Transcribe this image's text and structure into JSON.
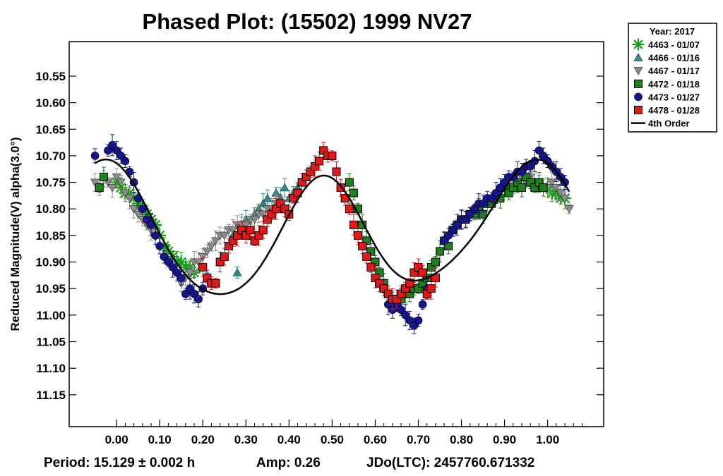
{
  "chart_data": {
    "type": "scatter",
    "title": "Phased Plot: (15502) 1999 NV27",
    "xlabel": "",
    "ylabel": "Reduced Magnitude(V) alpha(3.0°)",
    "xlim": [
      -0.11,
      1.13
    ],
    "ylim": [
      10.485,
      11.21
    ],
    "y_inverted": true,
    "x_ticks": [
      "0.00",
      "0.10",
      "0.20",
      "0.30",
      "0.40",
      "0.50",
      "0.60",
      "0.70",
      "0.80",
      "0.90",
      "1.00"
    ],
    "y_ticks": [
      "10.55",
      "10.60",
      "10.65",
      "10.70",
      "10.75",
      "10.80",
      "10.85",
      "10.90",
      "10.95",
      "11.00",
      "11.05",
      "11.10",
      "11.15"
    ],
    "legend_title": "Year: 2017",
    "legend_position": "top-right outside",
    "footer": {
      "period": "Period: 15.129 ± 0.002 h",
      "amp": "Amp: 0.26",
      "jdo": "JDo(LTC): 2457760.671332"
    },
    "series": [
      {
        "name": "4463 - 01/07",
        "marker": "asterisk",
        "color": "#1a9b1a",
        "x": [
          0.0,
          0.01,
          0.02,
          0.03,
          0.04,
          0.05,
          0.06,
          0.07,
          0.08,
          0.09,
          0.1,
          0.11,
          0.12,
          0.13,
          0.14,
          0.15,
          0.16,
          0.17,
          0.18,
          1.0,
          1.01,
          1.02,
          1.03,
          1.04
        ],
        "y": [
          10.75,
          10.76,
          10.77,
          10.77,
          10.78,
          10.79,
          10.8,
          10.81,
          10.82,
          10.83,
          10.85,
          10.87,
          10.88,
          10.89,
          10.9,
          10.9,
          10.91,
          10.91,
          10.92,
          10.76,
          10.77,
          10.77,
          10.78,
          10.78
        ]
      },
      {
        "name": "4466 - 01/16",
        "marker": "triangle-up",
        "color": "#2b8a8a",
        "x": [
          0.27,
          0.28,
          0.29,
          0.3,
          0.31,
          0.32,
          0.33,
          0.34,
          0.35,
          0.36,
          0.37,
          0.38,
          0.39,
          0.4,
          0.41,
          0.42
        ],
        "y": [
          10.85,
          10.92,
          10.83,
          10.82,
          10.84,
          10.81,
          10.8,
          10.79,
          10.78,
          10.8,
          10.77,
          10.78,
          10.76,
          10.78,
          10.77,
          10.76
        ]
      },
      {
        "name": "4467 - 01/17",
        "marker": "triangle-down",
        "color": "#8c8c8c",
        "x": [
          -0.05,
          -0.04,
          -0.03,
          -0.02,
          -0.01,
          0.0,
          0.01,
          0.02,
          0.03,
          0.04,
          0.05,
          0.06,
          0.07,
          0.08,
          0.15,
          0.16,
          0.17,
          0.18,
          0.19,
          0.2,
          0.21,
          0.22,
          0.23,
          0.24,
          0.25,
          0.26,
          0.27,
          0.28,
          0.29,
          0.3,
          0.31,
          0.32,
          0.33,
          0.34,
          0.35,
          0.36,
          0.37,
          0.38,
          0.94,
          0.95,
          0.96,
          0.97,
          0.98,
          1.0,
          1.01,
          1.02,
          1.03,
          1.04,
          1.05
        ],
        "y": [
          10.75,
          10.76,
          10.74,
          10.75,
          10.76,
          10.74,
          10.75,
          10.77,
          10.78,
          10.8,
          10.81,
          10.82,
          10.83,
          10.84,
          10.94,
          10.93,
          10.92,
          10.9,
          10.9,
          10.89,
          10.88,
          10.87,
          10.86,
          10.85,
          10.85,
          10.84,
          10.84,
          10.83,
          10.83,
          10.83,
          10.82,
          10.82,
          10.81,
          10.81,
          10.8,
          10.8,
          10.79,
          10.79,
          10.74,
          10.75,
          10.74,
          10.75,
          10.75,
          10.76,
          10.75,
          10.76,
          10.77,
          10.78,
          10.8
        ]
      },
      {
        "name": "4472 - 01/18",
        "marker": "square",
        "color": "#1f7f1f",
        "x": [
          -0.04,
          -0.03,
          0.54,
          0.55,
          0.56,
          0.57,
          0.58,
          0.59,
          0.6,
          0.61,
          0.62,
          0.63,
          0.64,
          0.65,
          0.66,
          0.67,
          0.68,
          0.69,
          0.7,
          0.71,
          0.72,
          0.73,
          0.74,
          0.75,
          0.76,
          0.77,
          0.78,
          0.79,
          0.8,
          0.81,
          0.82,
          0.83,
          0.84,
          0.85,
          0.86,
          0.87,
          0.88,
          0.89,
          0.9,
          0.91,
          0.92,
          0.93,
          0.94,
          0.95,
          0.96,
          0.97,
          0.98,
          0.99
        ],
        "y": [
          10.76,
          10.74,
          10.75,
          10.77,
          10.8,
          10.83,
          10.86,
          10.88,
          10.9,
          10.92,
          10.94,
          10.96,
          10.97,
          10.98,
          10.97,
          10.96,
          10.96,
          10.95,
          10.95,
          10.94,
          10.93,
          10.91,
          10.9,
          10.88,
          10.86,
          10.87,
          10.84,
          10.83,
          10.82,
          10.82,
          10.81,
          10.81,
          10.8,
          10.81,
          10.79,
          10.79,
          10.78,
          10.78,
          10.76,
          10.77,
          10.76,
          10.75,
          10.76,
          10.74,
          10.75,
          10.76,
          10.75,
          10.76
        ]
      },
      {
        "name": "4473 - 01/27",
        "marker": "circle",
        "color": "#16168a",
        "x": [
          -0.05,
          -0.02,
          -0.01,
          0.0,
          0.01,
          0.02,
          0.03,
          0.04,
          0.05,
          0.06,
          0.07,
          0.08,
          0.09,
          0.1,
          0.11,
          0.12,
          0.13,
          0.14,
          0.15,
          0.16,
          0.17,
          0.18,
          0.19,
          0.2,
          0.21,
          0.63,
          0.64,
          0.65,
          0.66,
          0.67,
          0.68,
          0.69,
          0.7,
          0.71,
          0.72,
          0.76,
          0.77,
          0.78,
          0.79,
          0.8,
          0.81,
          0.82,
          0.83,
          0.84,
          0.85,
          0.86,
          0.87,
          0.88,
          0.89,
          0.9,
          0.91,
          0.92,
          0.93,
          0.94,
          0.95,
          0.96,
          0.97,
          0.98,
          0.99,
          1.0,
          1.01,
          1.02,
          1.03,
          1.04
        ],
        "y": [
          10.7,
          10.69,
          10.68,
          10.69,
          10.7,
          10.71,
          10.73,
          10.75,
          10.78,
          10.8,
          10.82,
          10.83,
          10.85,
          10.87,
          10.89,
          10.9,
          10.91,
          10.92,
          10.93,
          10.96,
          10.95,
          10.96,
          10.97,
          10.95,
          10.93,
          10.98,
          10.99,
          10.98,
          10.99,
          11.0,
          11.01,
          11.02,
          11.01,
          10.98,
          10.95,
          10.86,
          10.85,
          10.84,
          10.83,
          10.82,
          10.82,
          10.81,
          10.8,
          10.79,
          10.79,
          10.78,
          10.78,
          10.77,
          10.76,
          10.75,
          10.74,
          10.74,
          10.73,
          10.73,
          10.72,
          10.72,
          10.71,
          10.69,
          10.7,
          10.71,
          10.72,
          10.73,
          10.74,
          10.75
        ]
      },
      {
        "name": "4478 - 01/28",
        "marker": "square",
        "color": "#e01a1a",
        "x": [
          0.2,
          0.21,
          0.22,
          0.23,
          0.24,
          0.25,
          0.26,
          0.27,
          0.28,
          0.29,
          0.3,
          0.31,
          0.32,
          0.33,
          0.34,
          0.35,
          0.36,
          0.37,
          0.38,
          0.39,
          0.4,
          0.41,
          0.42,
          0.43,
          0.44,
          0.45,
          0.46,
          0.47,
          0.48,
          0.49,
          0.5,
          0.51,
          0.52,
          0.53,
          0.54,
          0.55,
          0.56,
          0.57,
          0.58,
          0.59,
          0.6,
          0.61,
          0.62,
          0.63,
          0.64,
          0.65,
          0.66,
          0.67,
          0.68,
          0.69,
          0.7,
          0.71,
          0.72,
          0.73,
          0.74
        ],
        "y": [
          10.91,
          10.93,
          10.94,
          10.94,
          10.9,
          10.89,
          10.87,
          10.86,
          10.85,
          10.84,
          10.85,
          10.84,
          10.86,
          10.85,
          10.84,
          10.82,
          10.81,
          10.8,
          10.79,
          10.8,
          10.81,
          10.78,
          10.77,
          10.75,
          10.74,
          10.73,
          10.72,
          10.71,
          10.69,
          10.7,
          10.7,
          10.73,
          10.76,
          10.78,
          10.8,
          10.83,
          10.85,
          10.87,
          10.89,
          10.91,
          10.93,
          10.94,
          10.95,
          10.96,
          10.97,
          10.97,
          10.96,
          10.95,
          10.94,
          10.92,
          10.91,
          10.92,
          10.96,
          10.95,
          10.93
        ]
      }
    ],
    "fit": {
      "name": "4th Order",
      "color": "#000000",
      "mean": 10.845,
      "terms": [
        {
          "h": 1,
          "a": -0.02,
          "b": 0.018
        },
        {
          "h": 2,
          "a": -0.105,
          "b": 0.035
        },
        {
          "h": 3,
          "a": 0.006,
          "b": -0.004
        },
        {
          "h": 4,
          "a": -0.012,
          "b": 0.004
        }
      ]
    }
  }
}
